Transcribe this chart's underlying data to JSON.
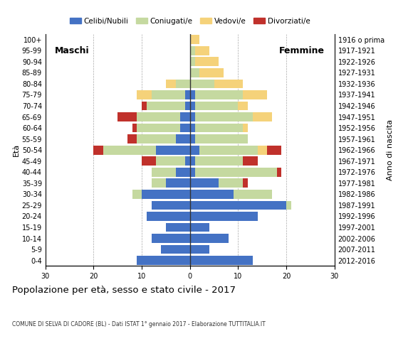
{
  "age_groups": [
    "0-4",
    "5-9",
    "10-14",
    "15-19",
    "20-24",
    "25-29",
    "30-34",
    "35-39",
    "40-44",
    "45-49",
    "50-54",
    "55-59",
    "60-64",
    "65-69",
    "70-74",
    "75-79",
    "80-84",
    "85-89",
    "90-94",
    "95-99",
    "100+"
  ],
  "birth_years": [
    "2012-2016",
    "2007-2011",
    "2002-2006",
    "1997-2001",
    "1992-1996",
    "1987-1991",
    "1982-1986",
    "1977-1981",
    "1972-1976",
    "1967-1971",
    "1962-1966",
    "1957-1961",
    "1952-1956",
    "1947-1951",
    "1942-1946",
    "1937-1941",
    "1932-1936",
    "1927-1931",
    "1922-1926",
    "1917-1921",
    "1916 o prima"
  ],
  "male": {
    "celibinubili": [
      11,
      6,
      8,
      5,
      9,
      8,
      10,
      5,
      3,
      1,
      7,
      3,
      2,
      2,
      1,
      1,
      0,
      0,
      0,
      0,
      0
    ],
    "coniugatile": [
      0,
      0,
      0,
      0,
      0,
      0,
      2,
      3,
      5,
      6,
      11,
      8,
      9,
      9,
      8,
      7,
      3,
      0,
      0,
      0,
      0
    ],
    "vedovile": [
      0,
      0,
      0,
      0,
      0,
      0,
      0,
      0,
      0,
      0,
      0,
      0,
      0,
      0,
      0,
      3,
      2,
      0,
      0,
      0,
      0
    ],
    "divorziatile": [
      0,
      0,
      0,
      0,
      0,
      0,
      0,
      0,
      0,
      3,
      2,
      2,
      1,
      4,
      1,
      0,
      0,
      0,
      0,
      0,
      0
    ]
  },
  "female": {
    "celibinubili": [
      13,
      4,
      8,
      4,
      14,
      20,
      9,
      6,
      1,
      1,
      2,
      1,
      1,
      1,
      1,
      1,
      0,
      0,
      0,
      0,
      0
    ],
    "coniugatile": [
      0,
      0,
      0,
      0,
      0,
      1,
      8,
      5,
      17,
      10,
      12,
      11,
      10,
      12,
      9,
      10,
      5,
      2,
      1,
      1,
      0
    ],
    "vedovile": [
      0,
      0,
      0,
      0,
      0,
      0,
      0,
      0,
      0,
      0,
      2,
      0,
      1,
      4,
      2,
      5,
      6,
      5,
      5,
      3,
      2
    ],
    "divorziatile": [
      0,
      0,
      0,
      0,
      0,
      0,
      0,
      1,
      1,
      3,
      3,
      0,
      0,
      0,
      0,
      0,
      0,
      0,
      0,
      0,
      0
    ]
  },
  "colors": {
    "celibinubili": "#4472C4",
    "coniugatile": "#C5D9A0",
    "vedovile": "#F5D27A",
    "divorziatile": "#C0312B"
  },
  "title": "Popolazione per età, sesso e stato civile - 2017",
  "subtitle": "COMUNE DI SELVA DI CADORE (BL) - Dati ISTAT 1° gennaio 2017 - Elaborazione TUTTITALIA.IT",
  "xlabel_left": "Maschi",
  "xlabel_right": "Femmine",
  "ylabel": "Età",
  "ylabel_right": "Anno di nascita",
  "xlim": 30,
  "legend_labels": [
    "Celibi/Nubili",
    "Coniugati/e",
    "Vedovi/e",
    "Divorziati/e"
  ],
  "background_color": "#FFFFFF"
}
